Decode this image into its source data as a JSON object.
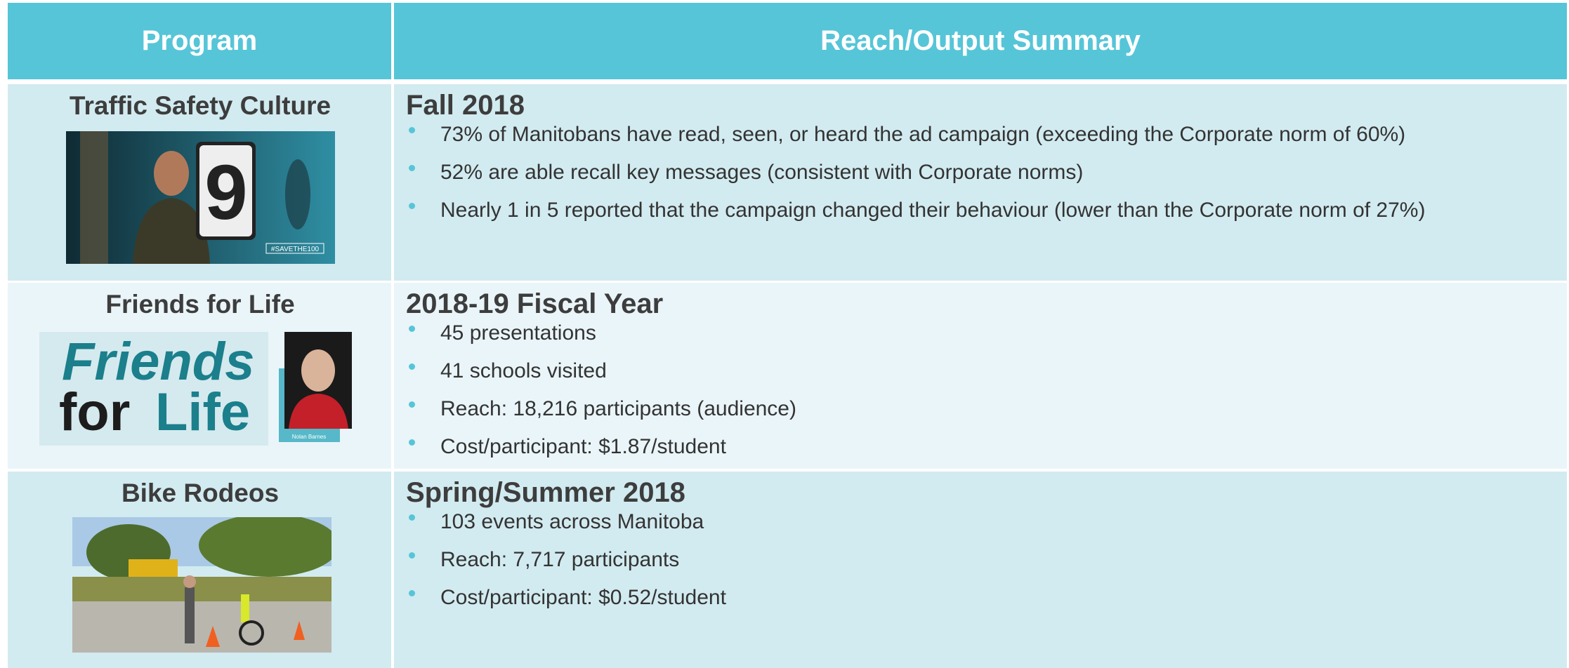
{
  "header": {
    "program": "Program",
    "summary": "Reach/Output Summary"
  },
  "rows": [
    {
      "program": "Traffic Safety Culture",
      "period": "Fall 2018",
      "bullets": [
        "73% of Manitobans have read, seen, or heard the ad campaign (exceeding the Corporate norm of 60%)",
        "52% are able recall key messages (consistent with Corporate norms)",
        "Nearly 1 in 5 reported that the campaign changed their behaviour (lower than the Corporate norm of 27%)"
      ],
      "image_text": [
        "9",
        "#SAVETHE100"
      ]
    },
    {
      "program": "Friends for Life",
      "period": "2018-19 Fiscal Year",
      "bullets": [
        "45 presentations",
        "41 schools visited",
        "Reach:  18,216 participants (audience)",
        "Cost/participant: $1.87/student"
      ],
      "image_text": [
        "Friends",
        "for",
        "Life",
        "Nolan Barnes"
      ]
    },
    {
      "program": "Bike Rodeos",
      "period": "Spring/Summer 2018",
      "bullets": [
        "103 events across Manitoba",
        "Reach:  7,717 participants",
        "Cost/participant:  $0.52/student"
      ],
      "image_text": []
    }
  ]
}
